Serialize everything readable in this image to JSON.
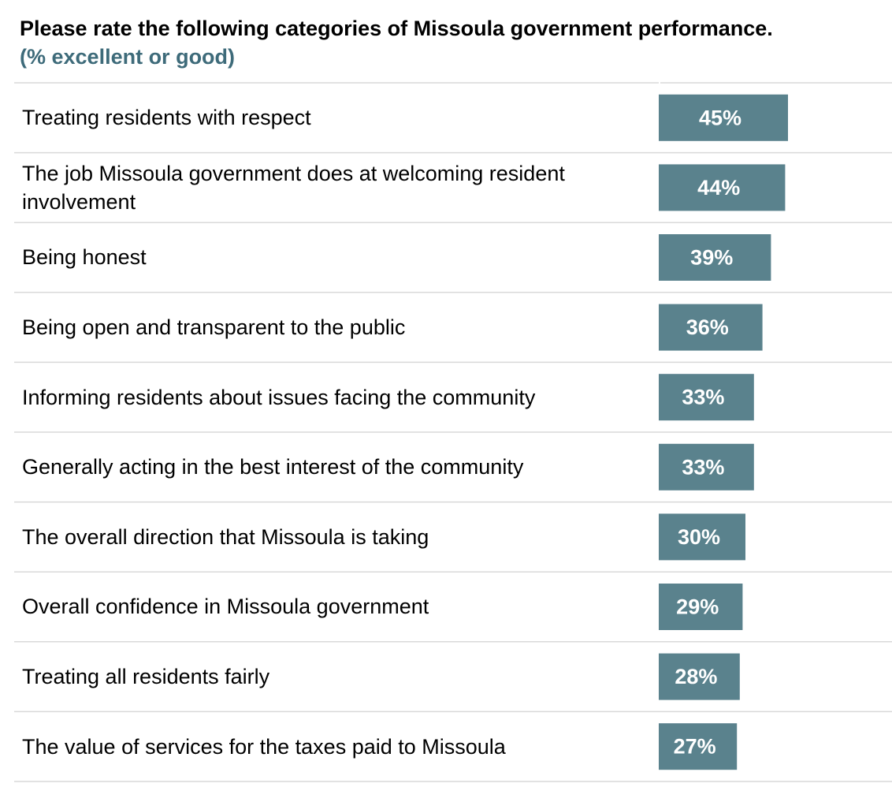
{
  "colors": {
    "bar": "#5a828d",
    "subtitle": "#3e6b7a",
    "gridline": "#d9d9d9",
    "bar_label": "#ffffff"
  },
  "chart_data": {
    "type": "bar",
    "orientation": "horizontal",
    "title": "Please rate the following categories of Missoula government performance.",
    "subtitle": "(% excellent or good)",
    "categories": [
      "Treating residents with respect",
      "The job Missoula government does at welcoming resident involvement",
      "Being honest",
      "Being open and transparent to the public",
      "Informing residents about issues facing the community",
      "Generally acting in the best interest of the community",
      "The overall direction that Missoula is taking",
      "Overall confidence in Missoula government",
      "Treating all residents fairly",
      "The value of services for the taxes paid to Missoula"
    ],
    "values": [
      45,
      44,
      39,
      36,
      33,
      33,
      30,
      29,
      28,
      27
    ],
    "value_labels": [
      "45%",
      "44%",
      "39%",
      "36%",
      "33%",
      "33%",
      "30%",
      "29%",
      "28%",
      "27%"
    ],
    "xlim": [
      0,
      100
    ],
    "unit": "%",
    "grid": false,
    "legend": "none"
  }
}
